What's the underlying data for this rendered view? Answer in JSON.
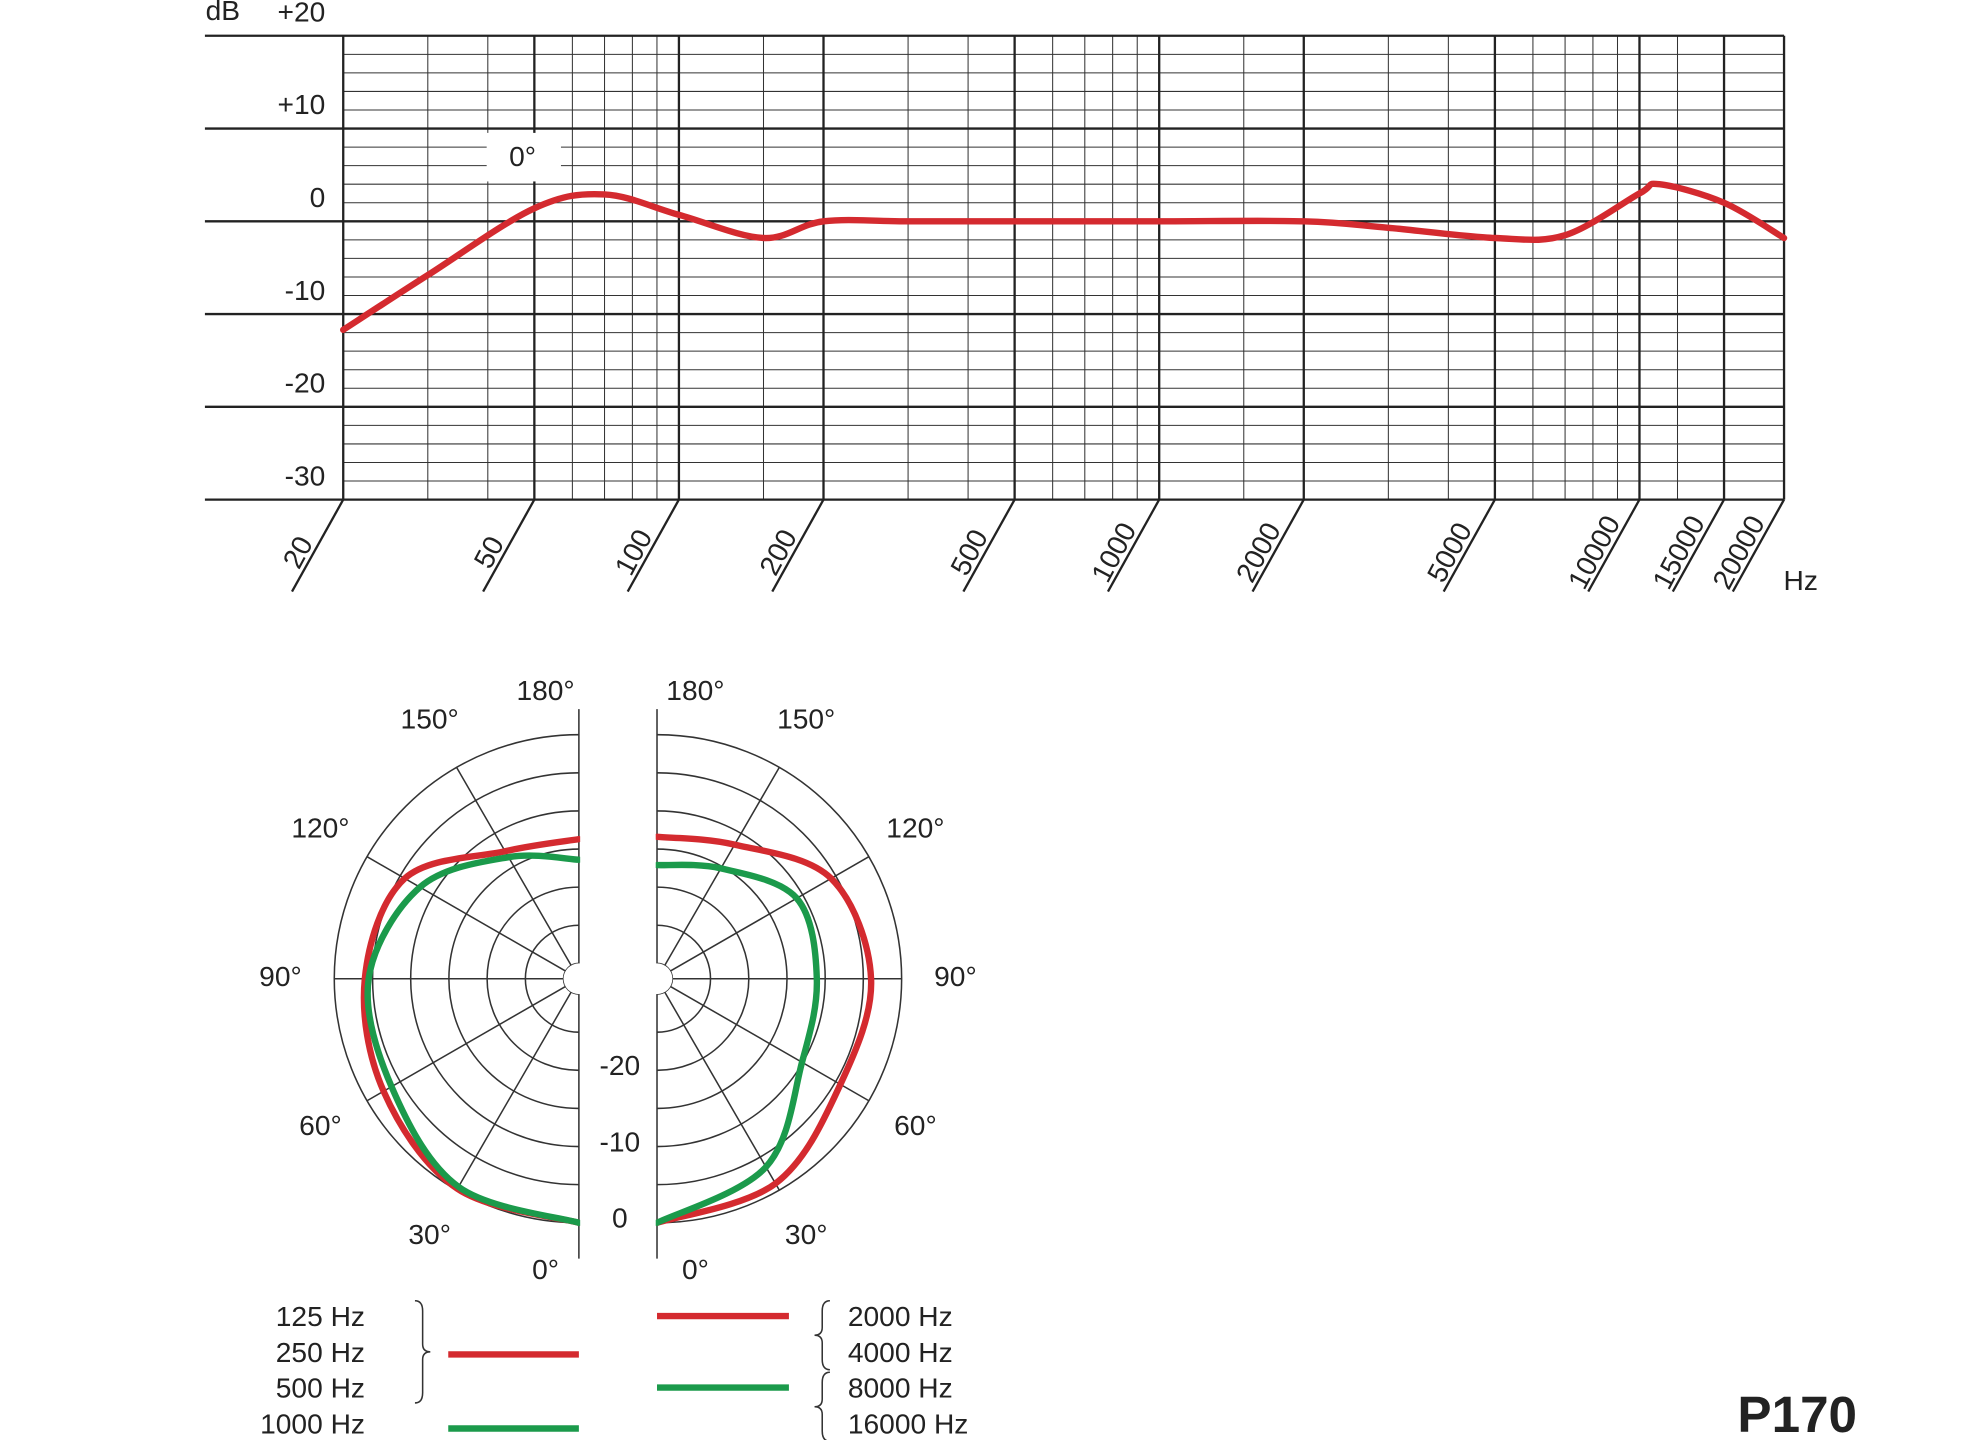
{
  "label": "P170",
  "chart_data": [
    {
      "type": "line",
      "y_label": "dB",
      "x_label": "Hz",
      "annotation": "0°",
      "xscale": "log",
      "grid": true,
      "xlim": [
        20,
        20000
      ],
      "ylim": [
        -30,
        20
      ],
      "xticks": [
        20,
        50,
        100,
        200,
        500,
        1000,
        2000,
        5000,
        10000,
        15000,
        20000
      ],
      "yticks": [
        -30,
        -20,
        -10,
        0,
        {
          "value": 10,
          "label": "+10"
        },
        {
          "value": 20,
          "label": "+20"
        }
      ],
      "minor_xticks": [
        30,
        40,
        60,
        70,
        80,
        90,
        150,
        300,
        400,
        600,
        700,
        800,
        900,
        1500,
        3000,
        4000,
        6000,
        7000,
        8000,
        9000,
        12000
      ],
      "minor_yticks": [
        -28,
        -26,
        -24,
        -22,
        -18,
        -16,
        -14,
        -12,
        -8,
        -6,
        -4,
        -2,
        2,
        4,
        6,
        8,
        12,
        14,
        16,
        18
      ],
      "x": [
        20,
        30,
        50,
        70,
        100,
        150,
        200,
        300,
        500,
        1000,
        2000,
        3000,
        5000,
        7000,
        10000,
        11000,
        15000,
        20000
      ],
      "series": [
        {
          "color": "#d42a2f",
          "values": [
            -11.7,
            -5.8,
            1.4,
            2.9,
            0.7,
            -1.8,
            0,
            0,
            0,
            0,
            0,
            -0.7,
            -1.8,
            -1.5,
            3.0,
            4.0,
            2.0,
            -1.8
          ]
        }
      ]
    },
    {
      "type": "polar",
      "rlim": [
        -30,
        0
      ],
      "rticks": [
        0,
        -10,
        -20
      ],
      "rgrid": [
        -5,
        -10,
        -15,
        -20,
        -25
      ],
      "theta": [
        0,
        30,
        60,
        90,
        120,
        150,
        180
      ],
      "thetaticks": [
        {
          "value": 0,
          "label": "0°"
        },
        {
          "value": 30,
          "label": "30°"
        },
        {
          "value": 60,
          "label": "60°"
        },
        {
          "value": 90,
          "label": "90°"
        },
        {
          "value": 120,
          "label": "120°"
        },
        {
          "value": 150,
          "label": "150°"
        },
        {
          "value": 180,
          "label": "180°"
        }
      ],
      "panels": [
        {
          "side": "left",
          "series": [
            {
              "names": [
                "125 Hz",
                "250 Hz",
                "500 Hz"
              ],
              "color": "#d42a2f",
              "values": [
                0,
                -0.2,
                -2.5,
                -4,
                -5.7,
                -12.7,
                -13.7
              ]
            },
            {
              "names": [
                "1000 Hz"
              ],
              "color": "#1b9a4b",
              "values": [
                0,
                -0.5,
                -3.7,
                -4.5,
                -8,
                -13.6,
                -16.4
              ]
            }
          ]
        },
        {
          "side": "right",
          "series": [
            {
              "names": [
                "2000 Hz",
                "4000 Hz"
              ],
              "color": "#d42a2f",
              "values": [
                0,
                -1,
                -4.3,
                -4,
                -5.7,
                -11.7,
                -13.4
              ]
            },
            {
              "names": [
                "8000 Hz",
                "16000 Hz"
              ],
              "color": "#1b9a4b",
              "values": [
                0,
                -3.5,
                -10.1,
                -11.1,
                -10.9,
                -15.3,
                -17.1
              ]
            }
          ]
        }
      ]
    }
  ]
}
